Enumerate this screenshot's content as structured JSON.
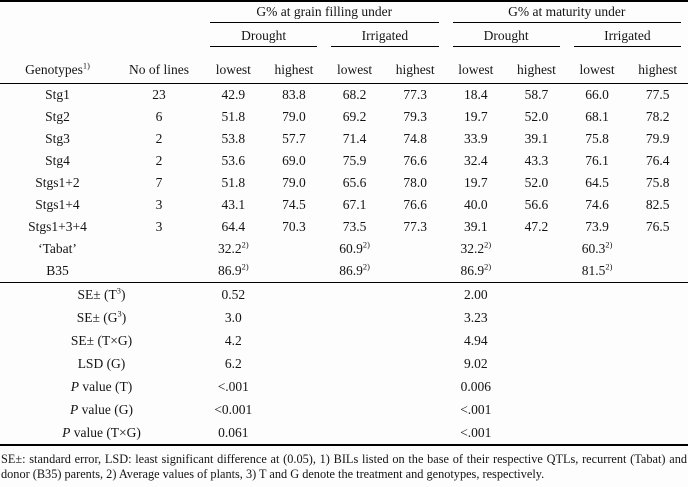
{
  "table": {
    "group_headers": [
      "G% at grain filling under",
      "G% at maturity under"
    ],
    "condition_headers": [
      "Drought",
      "Irrigated",
      "Drought",
      "Irrigated"
    ],
    "genotypes_header": {
      "text": "Genotypes",
      "sup": "1)"
    },
    "no_of_lines_header": "No of lines",
    "range_headers": [
      "lowest",
      "highest",
      "lowest",
      "highest",
      "lowest",
      "highest",
      "lowest",
      "highest"
    ],
    "genotype_rows": [
      {
        "genotype": "Stg1",
        "lines": "23",
        "values": [
          "42.9",
          "83.8",
          "68.2",
          "77.3",
          "18.4",
          "58.7",
          "66.0",
          "77.5"
        ]
      },
      {
        "genotype": "Stg2",
        "lines": "6",
        "values": [
          "51.8",
          "79.0",
          "69.2",
          "79.3",
          "19.7",
          "52.0",
          "68.1",
          "78.2"
        ]
      },
      {
        "genotype": "Stg3",
        "lines": "2",
        "values": [
          "53.8",
          "57.7",
          "71.4",
          "74.8",
          "33.9",
          "39.1",
          "75.8",
          "79.9"
        ]
      },
      {
        "genotype": "Stg4",
        "lines": "2",
        "values": [
          "53.6",
          "69.0",
          "75.9",
          "76.6",
          "32.4",
          "43.3",
          "76.1",
          "76.4"
        ]
      },
      {
        "genotype": "Stgs1+2",
        "lines": "7",
        "values": [
          "51.8",
          "79.0",
          "65.6",
          "78.0",
          "19.7",
          "52.0",
          "64.5",
          "75.8"
        ]
      },
      {
        "genotype": "Stgs1+4",
        "lines": "3",
        "values": [
          "43.1",
          "74.5",
          "67.1",
          "76.6",
          "40.0",
          "56.6",
          "74.6",
          "82.5"
        ]
      },
      {
        "genotype": "Stgs1+3+4",
        "lines": "3",
        "values": [
          "64.4",
          "70.3",
          "73.5",
          "77.3",
          "39.1",
          "47.2",
          "73.9",
          "76.5"
        ]
      }
    ],
    "parent_rows": [
      {
        "genotype": "‘Tabat’",
        "values": [
          "32.2",
          "60.9",
          "32.2",
          "60.3"
        ],
        "marker": "2)"
      },
      {
        "genotype": "B35",
        "values": [
          "86.9",
          "86.9",
          "86.9",
          "81.5"
        ],
        "marker": "2)"
      }
    ],
    "stat_rows": [
      {
        "label": [
          {
            "t": "SE± (T"
          },
          {
            "t": "3",
            "sup": true
          },
          {
            "t": ")"
          }
        ],
        "left": "0.52",
        "right": "2.00"
      },
      {
        "label": [
          {
            "t": "SE± (G"
          },
          {
            "t": "3",
            "sup": true
          },
          {
            "t": ")"
          }
        ],
        "left": "3.0",
        "right": "3.23"
      },
      {
        "label": [
          {
            "t": "SE± (T×G)"
          }
        ],
        "left": "4.2",
        "right": "4.94"
      },
      {
        "label": [
          {
            "t": "LSD (G)"
          }
        ],
        "left": "6.2",
        "right": "9.02"
      },
      {
        "label": [
          {
            "t": "P",
            "i": true
          },
          {
            "t": " value (T)"
          }
        ],
        "left": "<.001",
        "right": "0.006"
      },
      {
        "label": [
          {
            "t": "P",
            "i": true
          },
          {
            "t": " value (G)"
          }
        ],
        "left": "<0.001",
        "right": "<.001"
      },
      {
        "label": [
          {
            "t": "P",
            "i": true
          },
          {
            "t": " value (T×G)"
          }
        ],
        "left": "0.061",
        "right": "<.001"
      }
    ]
  },
  "footnote": "SE±: standard error, LSD: least significant difference at (0.05), 1) BILs listed on the base of their respective QTLs, recurrent (Tabat) and donor (B35) parents, 2) Average values of plants, 3) T and G denote the treatment and genotypes, respectively."
}
